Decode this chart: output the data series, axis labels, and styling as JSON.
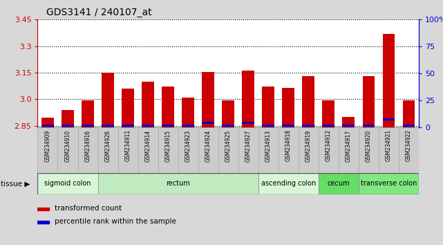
{
  "title": "GDS3141 / 240107_at",
  "samples": [
    "GSM234909",
    "GSM234910",
    "GSM234916",
    "GSM234926",
    "GSM234911",
    "GSM234914",
    "GSM234915",
    "GSM234923",
    "GSM234924",
    "GSM234925",
    "GSM234927",
    "GSM234913",
    "GSM234918",
    "GSM234919",
    "GSM234912",
    "GSM234917",
    "GSM234920",
    "GSM234921",
    "GSM234922"
  ],
  "red_values": [
    2.895,
    2.94,
    2.995,
    3.15,
    3.06,
    3.1,
    3.07,
    3.01,
    3.155,
    2.995,
    3.16,
    3.07,
    3.065,
    3.13,
    2.995,
    2.9,
    3.13,
    3.37,
    2.995
  ],
  "blue_heights": [
    0.012,
    0.012,
    0.012,
    0.012,
    0.012,
    0.012,
    0.012,
    0.012,
    0.012,
    0.012,
    0.012,
    0.012,
    0.012,
    0.012,
    0.012,
    0.012,
    0.012,
    0.012,
    0.012
  ],
  "blue_offsets": [
    0.005,
    0.005,
    0.005,
    0.005,
    0.005,
    0.005,
    0.005,
    0.005,
    0.02,
    0.005,
    0.02,
    0.005,
    0.005,
    0.005,
    0.005,
    0.005,
    0.005,
    0.04,
    0.005
  ],
  "ylim_left": [
    2.84,
    3.45
  ],
  "yticks_left": [
    2.85,
    3.0,
    3.15,
    3.3,
    3.45
  ],
  "ylim_right": [
    0,
    100
  ],
  "yticks_right": [
    0,
    25,
    50,
    75,
    100
  ],
  "ytick_labels_right": [
    "0",
    "25",
    "50",
    "75",
    "100%"
  ],
  "left_axis_color": "#cc0000",
  "right_axis_color": "#0000cc",
  "bar_color_red": "#cc0000",
  "bar_color_blue": "#0000cc",
  "tissue_groups": [
    {
      "label": "sigmoid colon",
      "start": 0,
      "end": 3,
      "color": "#d8f5d8"
    },
    {
      "label": "rectum",
      "start": 3,
      "end": 11,
      "color": "#c0ebc0"
    },
    {
      "label": "ascending colon",
      "start": 11,
      "end": 14,
      "color": "#d8f5d8"
    },
    {
      "label": "cecum",
      "start": 14,
      "end": 16,
      "color": "#66dd66"
    },
    {
      "label": "transverse colon",
      "start": 16,
      "end": 19,
      "color": "#80e880"
    }
  ],
  "bar_width": 0.6,
  "bg_color": "#d8d8d8",
  "plot_bg_color": "#ffffff",
  "xticklabel_bg": "#d0d0d0"
}
